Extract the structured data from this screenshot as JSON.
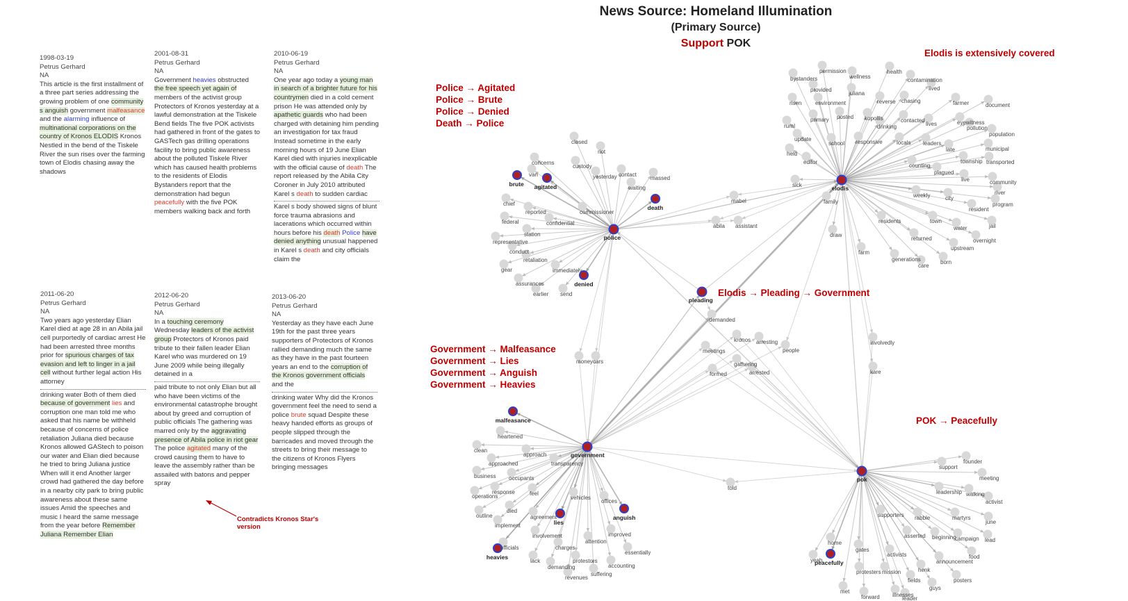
{
  "header": {
    "title": "News Source: Homeland Illumination",
    "subtitle": "(Primary Source)",
    "stance_label": "Support",
    "stance_target": "POK"
  },
  "articles": [
    {
      "date": "1998-03-19",
      "author": "Petrus Gerhard",
      "loc": "NA",
      "top": [
        [
          "This article is the first installment of a three part series addressing the growing problem of one ",
          ""
        ],
        [
          "community s anguish",
          "hl"
        ],
        [
          " government ",
          ""
        ],
        [
          "malfeasance",
          "neg hl"
        ],
        [
          " and the ",
          ""
        ],
        [
          "alarming",
          "blue"
        ],
        [
          " influence of ",
          ""
        ],
        [
          "multinational corporations on the country of Kronos ELODIS",
          "hl"
        ],
        [
          " Kronos Nestled in the bend of the Tiskele River the sun rises over the farming town of Elodis chasing away the shadows",
          ""
        ]
      ],
      "bottom": []
    },
    {
      "date": "2001-08-31",
      "author": "Petrus Gerhard",
      "loc": "NA",
      "top": [
        [
          "Government ",
          ""
        ],
        [
          "heavies",
          "blue"
        ],
        [
          " obstructed ",
          ""
        ],
        [
          "the free speech yet again of",
          "hl"
        ],
        [
          " members of the activist group Protectors of Kronos yesterday at a lawful demonstration at the Tiskele Bend fields The five POK activists had gathered in front of the gates to GASTech gas drilling operations facility to bring public awareness about the polluted Tiskele River which has caused health problems to the residents of Elodis Bystanders report that the demonstration had begun ",
          ""
        ],
        [
          "peacefully",
          "neg"
        ],
        [
          " with the five POK members walking back and forth",
          ""
        ]
      ],
      "bottom": []
    },
    {
      "date": "2010-06-19",
      "author": "Petrus Gerhard",
      "loc": "NA",
      "top": [
        [
          "One year ago today a ",
          ""
        ],
        [
          "young man in search of a brighter future for his countrymen",
          "hl"
        ],
        [
          " died in a cold cement prison He was attended only by ",
          ""
        ],
        [
          "apathetic guards",
          "hl"
        ],
        [
          " who had been charged with detaining him pending an investigation for tax fraud Instead sometime in the early morning hours of 19 June Elian Karel died with injuries inexplicable with the official cause of ",
          ""
        ],
        [
          "death",
          "neg"
        ],
        [
          " The report released by the Abila City Coroner in July 2010 attributed Karel s ",
          ""
        ],
        [
          "death",
          "neg"
        ],
        [
          " to sudden cardiac",
          ""
        ]
      ],
      "bottom": [
        [
          "Karel s body showed signs of blunt force trauma abrasions and lacerations which occurred within hours before his ",
          ""
        ],
        [
          "death",
          "neg hl"
        ],
        [
          " ",
          ""
        ],
        [
          "Police",
          "blue"
        ],
        [
          " ",
          ""
        ],
        [
          "have denied anything",
          "hl"
        ],
        [
          " unusual happened in Karel s ",
          ""
        ],
        [
          "death",
          "neg"
        ],
        [
          " and city officials claim the",
          ""
        ]
      ]
    },
    {
      "date": "2011-06-20",
      "author": "Petrus Gerhard",
      "loc": "NA",
      "top": [
        [
          "Two years ago yesterday Elian Karel died at age 28 in an Abila jail cell purportedly of cardiac arrest He had been arrested three months prior for ",
          ""
        ],
        [
          "spurious charges of tax evasion and left to linger in a jail cell",
          "hl"
        ],
        [
          " without further legal action His attorney",
          ""
        ]
      ],
      "bottom": [
        [
          "drinking water Both of them died ",
          ""
        ],
        [
          "because of government",
          "hl"
        ],
        [
          " ",
          ""
        ],
        [
          "lies",
          "neg"
        ],
        [
          " and corruption one man told me who asked that his name be withheld because of concerns of police retaliation Juliana died because Kronos allowed GAStech to poison our water and Elian died because he tried to bring Juliana justice When will it end Another larger crowd had gathered the day before in a nearby city park to bring public awareness about these same issues Amid the speeches and music I heard the same message from the year before ",
          ""
        ],
        [
          "Remember Juliana Remember Elian",
          "hl"
        ]
      ]
    },
    {
      "date": "2012-06-20",
      "author": "Petrus Gerhard",
      "loc": "NA",
      "top": [
        [
          "In a ",
          ""
        ],
        [
          "touching ceremony",
          "hl"
        ],
        [
          " Wednesday ",
          ""
        ],
        [
          "leaders of the activist group",
          "hl"
        ],
        [
          " Protectors of Kronos paid tribute to their fallen leader Elian Karel who was murdered on 19 June 2009 while being illegally detained in a",
          ""
        ]
      ],
      "bottom": [
        [
          "paid tribute to not only Elian but all who have been victims of the environmental catastrophe brought about by greed and corruption of public officials The gathering was marred only by the ",
          ""
        ],
        [
          "aggravating presence of Abila police in riot gear",
          "hl"
        ],
        [
          " The police ",
          ""
        ],
        [
          "agitated",
          "neg hl"
        ],
        [
          " many of the crowd causing them to have to leave the assembly rather than be assailed with batons and pepper spray",
          ""
        ]
      ]
    },
    {
      "date": "2013-06-20",
      "author": "Petrus Gerhard",
      "loc": "NA",
      "top": [
        [
          "Yesterday as they have each June 19th for the past three years supporters of Protectors of Kronos rallied demanding much the same as they have in the past fourteen years an end to the ",
          ""
        ],
        [
          "corruption of the Kronos government officials",
          "hl"
        ],
        [
          " and the",
          ""
        ]
      ],
      "bottom": [
        [
          "drinking water Why did the Kronos government feel the need to send a police ",
          ""
        ],
        [
          "brute",
          "neg"
        ],
        [
          " squad Despite these heavy handed efforts as groups of people slipped through the barricades and moved through the streets to bring their message to the citizens of Kronos Flyers bringing messages",
          ""
        ]
      ]
    }
  ],
  "annotations": {
    "police": [
      "Police → Agitated",
      "Police → Brute",
      "Police → Denied",
      "Death → Police"
    ],
    "elodis_covered": "Elodis is extensively covered",
    "pleading": "Elodis  → Pleading → Government",
    "government": [
      "Government → Malfeasance",
      "Government → Lies",
      "Government → Anguish",
      "Government → Heavies"
    ],
    "pok": "POK  → Peacefully",
    "contradicts": "Contradicts Kronos Star's version"
  },
  "colors": {
    "highlight_node": "#b02020",
    "node_border": "#2b3fcf",
    "node": "#d8d8d8",
    "edge": "#8a8a8a",
    "annotation": "#c00000"
  },
  "graph": {
    "hubs": [
      {
        "id": "police",
        "label": "police"
      },
      {
        "id": "elodis",
        "label": "elodis"
      },
      {
        "id": "government",
        "label": "government"
      },
      {
        "id": "pok",
        "label": "pok"
      },
      {
        "id": "pleading",
        "label": "pleading"
      }
    ],
    "highlighted": [
      "brute",
      "agitated",
      "death",
      "denied",
      "malfeasance",
      "lies",
      "anguish",
      "heavies",
      "peacefully"
    ],
    "labels": {
      "police": [
        "closed",
        "riot",
        "concerns",
        "custody",
        "van",
        "contact",
        "massed",
        "yesterday",
        "waiting",
        "brute",
        "agitated",
        "chief",
        "reported",
        "commissioner",
        "death",
        "federal",
        "confidential",
        "station",
        "representative",
        "conduct",
        "retaliation",
        "immediately",
        "gear",
        "assurances",
        "earlier",
        "send",
        "denied"
      ],
      "elodis": [
        "permission",
        "bystanders",
        "health",
        "wellness",
        "contamination",
        "provided",
        "juliana",
        "lived",
        "risen",
        "environment",
        "reverse",
        "chasing",
        "farmer",
        "document",
        "primary",
        "posted",
        "kopollis",
        "contacted",
        "lives",
        "eyewitness",
        "rural",
        "pollution",
        "drinking",
        "population",
        "update",
        "school",
        "responsive",
        "locals",
        "leaders",
        "late",
        "municipal",
        "held",
        "editor",
        "township",
        "transported",
        "counting",
        "plagued",
        "sick",
        "live",
        "community",
        "weekly",
        "family",
        "river",
        "city",
        "program",
        "resident",
        "town",
        "residents",
        "water",
        "jail",
        "draw",
        "returned",
        "overnight",
        "upstream",
        "farm",
        "generations",
        "care",
        "born"
      ],
      "government": [
        "malfeasance",
        "heartened",
        "clean",
        "approach",
        "approached",
        "transparency",
        "business",
        "occupants",
        "operations",
        "response",
        "feel",
        "outline",
        "vehicles",
        "offices",
        "died",
        "agreement",
        "implement",
        "lies",
        "anguish",
        "involvement",
        "officials",
        "attention",
        "improved",
        "charges",
        "heavies",
        "essentially",
        "lack",
        "demanding",
        "protestors",
        "accounting",
        "revenues",
        "suffering"
      ],
      "pok": [
        "support",
        "founder",
        "meeting",
        "leadership",
        "walking",
        "activist",
        "rabble",
        "martyrs",
        "june",
        "supporters",
        "home",
        "asserted",
        "beginning",
        "campaign",
        "lead",
        "gates",
        "activists",
        "yeah",
        "peacefully",
        "announcement",
        "food",
        "protesters",
        "mission",
        "henk",
        "fields",
        "posters",
        "guys",
        "met",
        "forward",
        "illnesses",
        "leader"
      ],
      "middle": [
        "mabel",
        "abila",
        "assistant",
        "demanded",
        "kronos",
        "arresting",
        "meetings",
        "people",
        "involvedly",
        "gathering",
        "money",
        "cars",
        "formed",
        "arrested",
        "kare",
        "told"
      ]
    }
  }
}
